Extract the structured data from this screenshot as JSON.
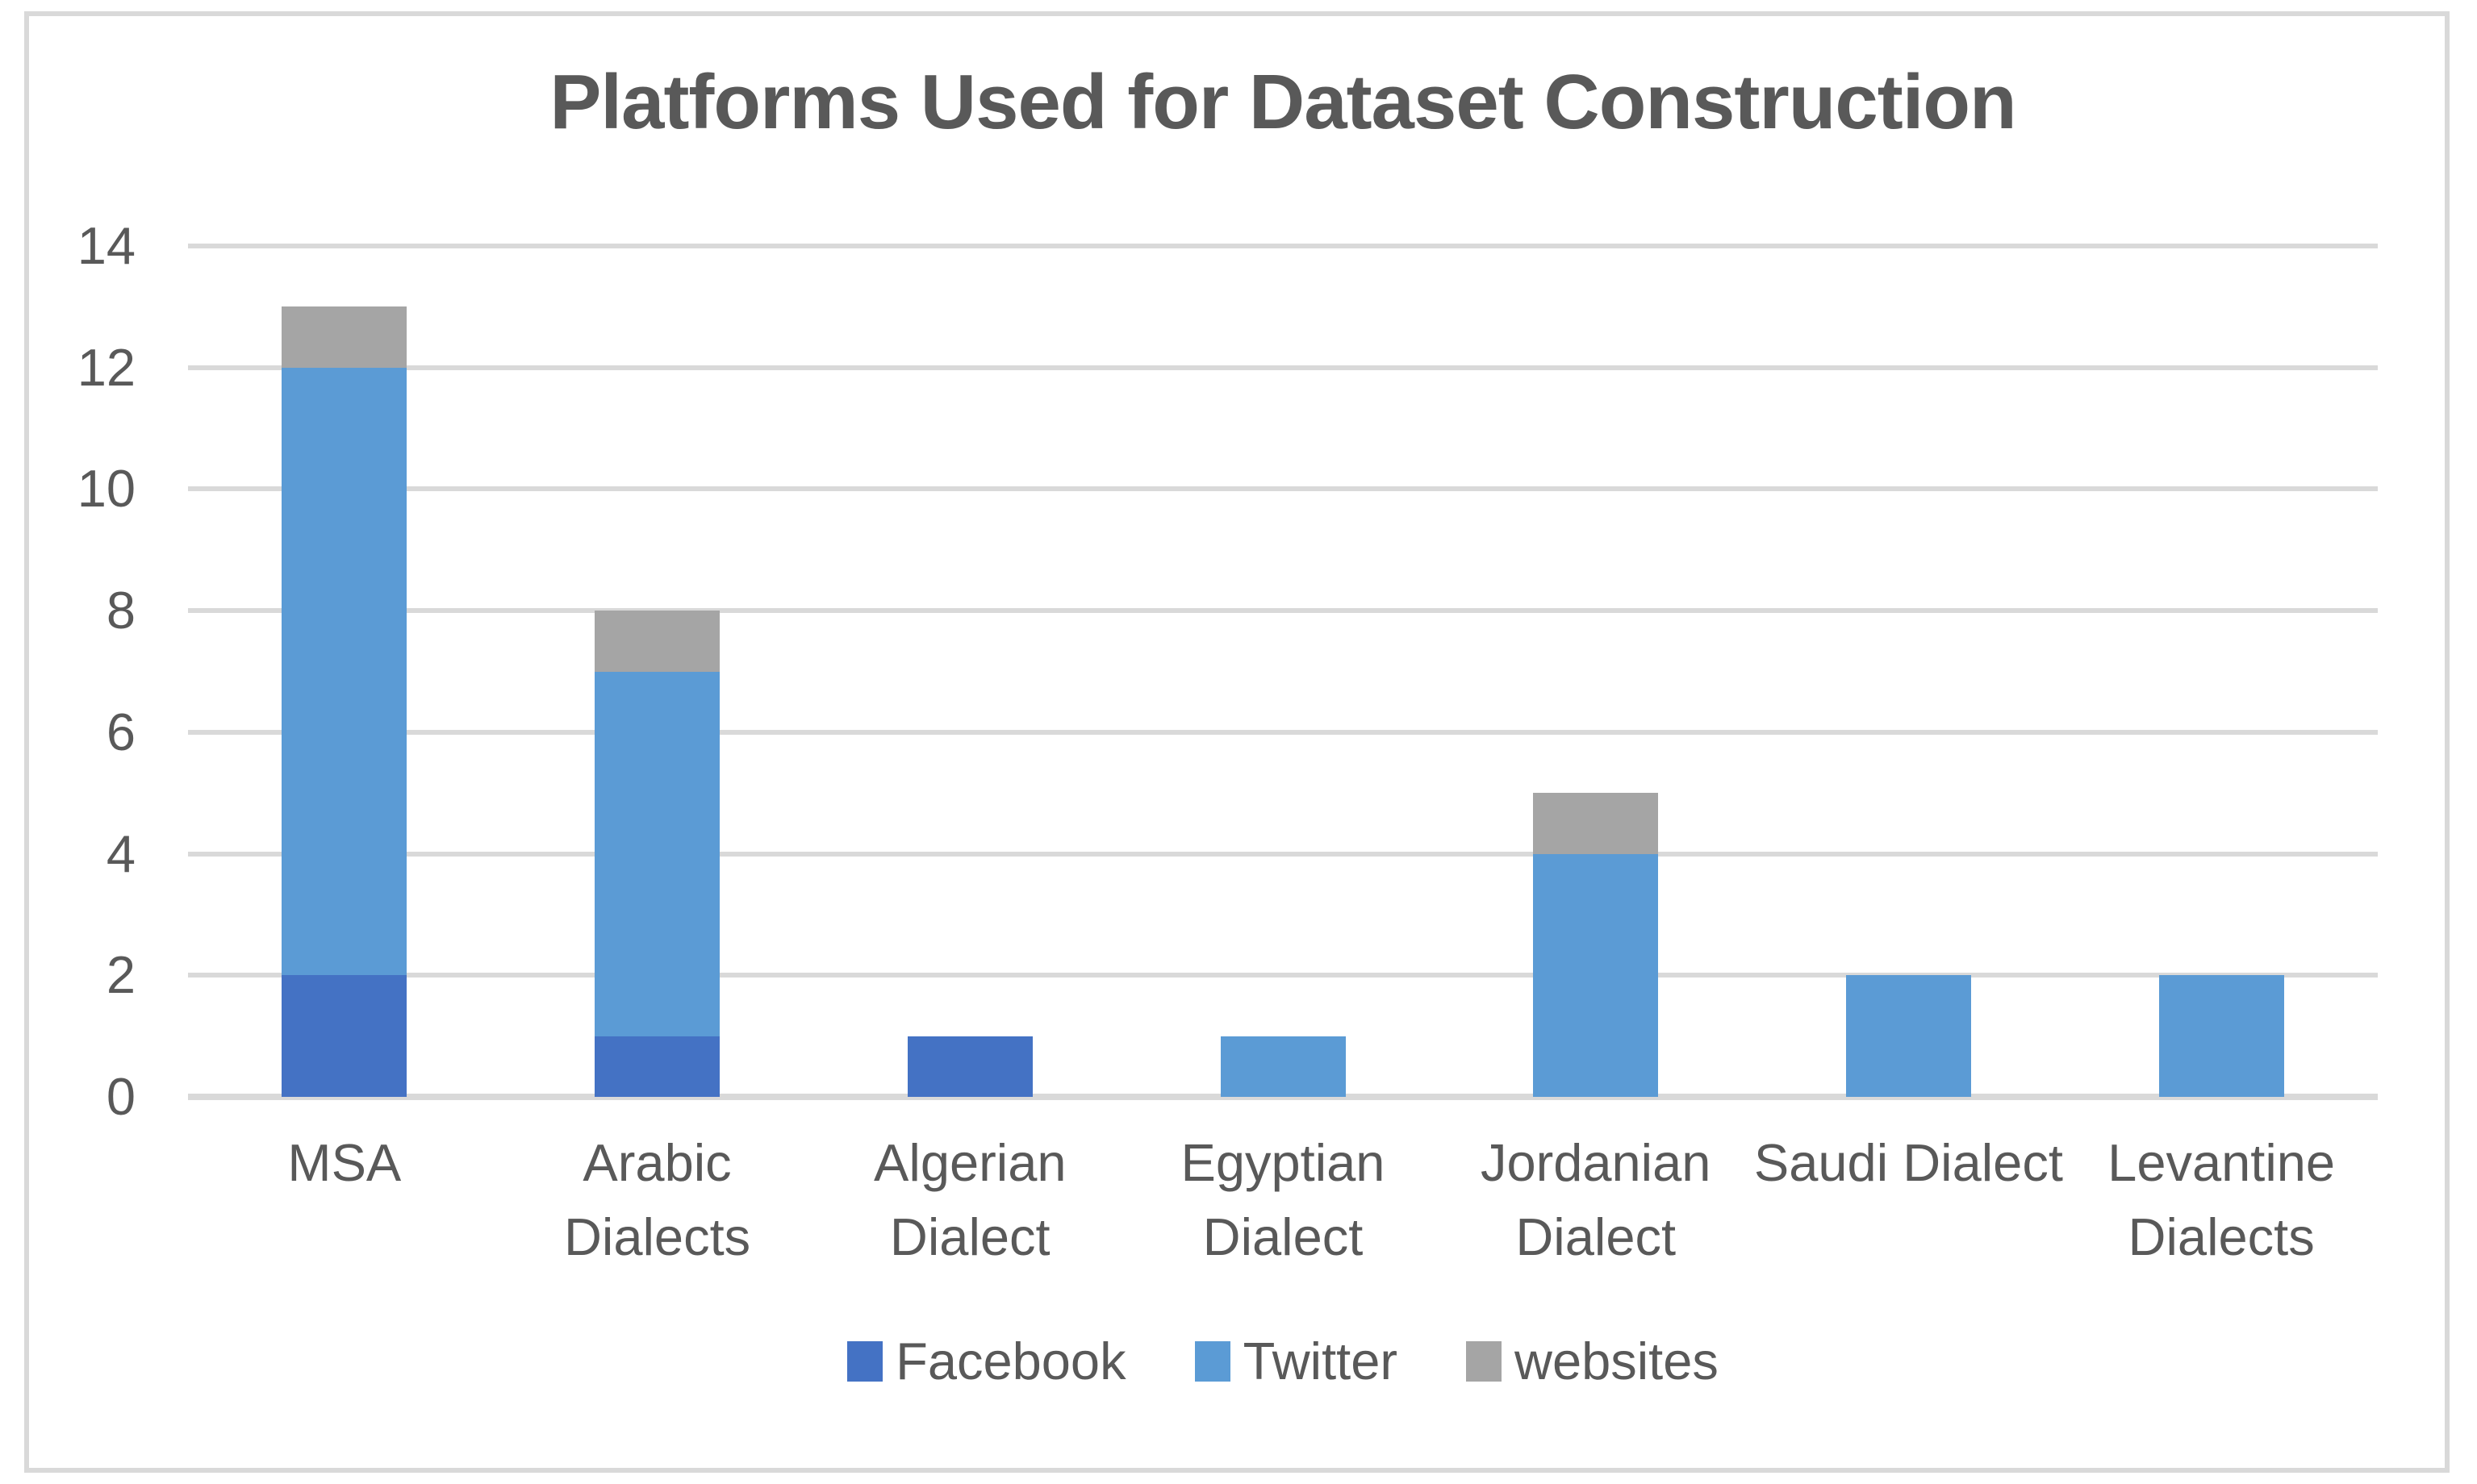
{
  "chart_data": {
    "type": "bar",
    "stacked": true,
    "title": "Platforms Used for Dataset Construction",
    "categories": [
      "MSA",
      "Arabic Dialects",
      "Algerian Dialect",
      "Egyptian Dialect",
      "Jordanian Dialect",
      "Saudi Dialect",
      "Levantine Dialects"
    ],
    "series": [
      {
        "name": "Facebook",
        "color": "#4472C4",
        "values": [
          2,
          1,
          1,
          0,
          0,
          0,
          0
        ]
      },
      {
        "name": "Twitter",
        "color": "#5B9BD5",
        "values": [
          10,
          6,
          0,
          1,
          4,
          2,
          2
        ]
      },
      {
        "name": "websites",
        "color": "#A5A5A5",
        "values": [
          1,
          1,
          0,
          0,
          1,
          0,
          0
        ]
      }
    ],
    "xlabel": "",
    "ylabel": "",
    "ylim": [
      0,
      14
    ],
    "yticks": [
      0,
      2,
      4,
      6,
      8,
      10,
      12,
      14
    ],
    "grid": true,
    "legend_position": "bottom"
  },
  "colors": {
    "gridline": "#D9D9D9",
    "baseline": "#D9D9D9",
    "axis_text": "#595959",
    "title_text": "#595959",
    "frame_border": "#D9D9D9",
    "background": "#FFFFFF"
  }
}
